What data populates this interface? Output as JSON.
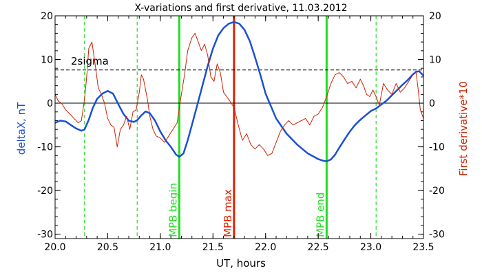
{
  "chart_data": {
    "type": "line",
    "title": "X-variations and first derivative, 11.03.2012",
    "xlabel": "UT, hours",
    "ylabel_left": "deltaX, nT",
    "ylabel_right": "First derivative*10",
    "xlim": [
      20.0,
      23.5
    ],
    "ylim": [
      -31,
      20
    ],
    "xticks": [
      20.0,
      20.5,
      21.0,
      21.5,
      22.0,
      22.5,
      23.0,
      23.5
    ],
    "xtick_labels": [
      "20.0",
      "20.5",
      "21.0",
      "21.5",
      "22.0",
      "22.5",
      "23.0",
      "23.5"
    ],
    "yticks": [
      -30,
      -20,
      -10,
      0,
      10,
      20
    ],
    "ytick_labels": [
      "-30",
      "-20",
      "-10",
      "0",
      "10",
      "20"
    ],
    "colors": {
      "deltaX": "#1a4fd6",
      "derivative": "#cc2200",
      "mpb_boundary": "#22dd22",
      "mpb_max": "#dd2200",
      "axes": "#000000"
    },
    "threshold": {
      "label": "2sigma",
      "value": 7.6
    },
    "vertical_lines": [
      {
        "x": 20.28,
        "style": "dashed",
        "color": "green",
        "label": ""
      },
      {
        "x": 20.78,
        "style": "dashed",
        "color": "green",
        "label": ""
      },
      {
        "x": 21.18,
        "style": "solid",
        "color": "green",
        "label": "MPB begin"
      },
      {
        "x": 21.7,
        "style": "solid",
        "color": "red",
        "label": "MPB max"
      },
      {
        "x": 22.58,
        "style": "solid",
        "color": "green",
        "label": "MPB end"
      },
      {
        "x": 23.05,
        "style": "dashed",
        "color": "green",
        "label": ""
      }
    ],
    "series": [
      {
        "key": "deltaX",
        "x": [
          20.0,
          20.05,
          20.1,
          20.15,
          20.2,
          20.25,
          20.28,
          20.32,
          20.36,
          20.4,
          20.45,
          20.5,
          20.55,
          20.6,
          20.65,
          20.7,
          20.75,
          20.78,
          20.82,
          20.86,
          20.9,
          20.95,
          21.0,
          21.05,
          21.1,
          21.15,
          21.18,
          21.22,
          21.26,
          21.3,
          21.35,
          21.4,
          21.45,
          21.5,
          21.55,
          21.6,
          21.65,
          21.7,
          21.75,
          21.8,
          21.85,
          21.9,
          21.95,
          22.0,
          22.1,
          22.2,
          22.3,
          22.4,
          22.5,
          22.55,
          22.58,
          22.62,
          22.66,
          22.7,
          22.75,
          22.8,
          22.85,
          22.9,
          22.95,
          23.0,
          23.05,
          23.1,
          23.15,
          23.2,
          23.25,
          23.3,
          23.35,
          23.4,
          23.43,
          23.46,
          23.5
        ],
        "y": [
          -4.5,
          -4.0,
          -4.2,
          -5.0,
          -5.8,
          -6.3,
          -6.0,
          -3.8,
          -1.0,
          1.0,
          2.2,
          2.8,
          2.2,
          -0.2,
          -2.5,
          -4.0,
          -4.3,
          -3.9,
          -2.8,
          -1.9,
          -2.3,
          -4.0,
          -6.5,
          -8.5,
          -10.0,
          -11.8,
          -12.3,
          -11.5,
          -8.5,
          -5.0,
          -0.5,
          4.0,
          8.5,
          12.5,
          15.5,
          17.2,
          18.2,
          18.6,
          18.2,
          16.8,
          14.2,
          10.5,
          6.5,
          2.2,
          -3.5,
          -7.0,
          -9.5,
          -11.5,
          -12.8,
          -13.2,
          -13.3,
          -12.9,
          -11.8,
          -10.2,
          -8.3,
          -6.5,
          -5.0,
          -3.8,
          -2.8,
          -1.8,
          -1.2,
          -0.3,
          0.6,
          1.8,
          3.0,
          4.2,
          5.3,
          6.6,
          7.2,
          7.3,
          6.3
        ]
      },
      {
        "key": "derivative",
        "x": [
          20.0,
          20.03,
          20.06,
          20.1,
          20.14,
          20.18,
          20.22,
          20.25,
          20.28,
          20.3,
          20.32,
          20.35,
          20.38,
          20.41,
          20.44,
          20.47,
          20.5,
          20.53,
          20.56,
          20.59,
          20.62,
          20.65,
          20.68,
          20.71,
          20.74,
          20.77,
          20.8,
          20.82,
          20.84,
          20.86,
          20.88,
          20.9,
          20.93,
          20.96,
          21.0,
          21.04,
          21.08,
          21.12,
          21.16,
          21.18,
          21.2,
          21.23,
          21.26,
          21.3,
          21.33,
          21.36,
          21.39,
          21.42,
          21.45,
          21.48,
          21.51,
          21.54,
          21.57,
          21.6,
          21.63,
          21.66,
          21.7,
          21.74,
          21.78,
          21.82,
          21.86,
          21.9,
          21.94,
          21.98,
          22.02,
          22.06,
          22.1,
          22.14,
          22.18,
          22.22,
          22.26,
          22.3,
          22.34,
          22.38,
          22.42,
          22.46,
          22.5,
          22.54,
          22.58,
          22.62,
          22.66,
          22.7,
          22.74,
          22.78,
          22.82,
          22.86,
          22.9,
          22.93,
          22.96,
          22.99,
          23.02,
          23.05,
          23.08,
          23.12,
          23.16,
          23.2,
          23.24,
          23.28,
          23.32,
          23.36,
          23.4,
          23.43,
          23.45,
          23.47,
          23.5
        ],
        "y": [
          2.0,
          0.5,
          0.0,
          -1.5,
          -2.5,
          -3.5,
          -4.5,
          -4.0,
          1.0,
          6.0,
          12.5,
          14.0,
          9.0,
          3.5,
          2.0,
          0.0,
          -3.5,
          -5.0,
          -5.5,
          -10.0,
          -6.0,
          -5.0,
          -3.0,
          -6.0,
          -2.0,
          -1.5,
          2.5,
          6.5,
          5.5,
          3.0,
          0.5,
          -3.0,
          -6.0,
          -7.5,
          -8.0,
          -9.0,
          -7.5,
          -6.0,
          -4.5,
          -1.0,
          2.0,
          6.5,
          12.0,
          15.0,
          16.0,
          14.0,
          12.0,
          13.5,
          11.0,
          6.0,
          5.0,
          9.0,
          7.0,
          2.5,
          1.5,
          0.5,
          -1.0,
          -5.0,
          -8.5,
          -7.0,
          -9.5,
          -10.5,
          -9.5,
          -10.5,
          -12.0,
          -11.5,
          -9.0,
          -6.5,
          -5.0,
          -4.0,
          -5.0,
          -4.5,
          -4.0,
          -3.5,
          -5.0,
          -3.0,
          -2.5,
          -1.0,
          1.5,
          4.5,
          6.5,
          7.0,
          6.0,
          4.5,
          5.0,
          3.5,
          5.5,
          4.0,
          2.0,
          1.5,
          3.0,
          1.5,
          -0.5,
          4.5,
          3.0,
          2.0,
          4.5,
          2.5,
          3.5,
          5.0,
          6.5,
          7.0,
          3.0,
          -1.5,
          -3.5
        ]
      }
    ]
  }
}
